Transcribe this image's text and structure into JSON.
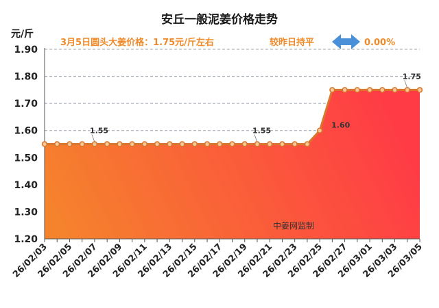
{
  "header": {
    "title": "安丘一般泥姜价格走势",
    "subtitle": "3月5日圆头大姜价格：1.75元/斤左右",
    "compare_text": "较昨日持平",
    "change_pct": "0.00%",
    "arrow_icon": "left-right-arrow-icon",
    "arrow_color": "#4a90d9"
  },
  "watermark": "中姜网监制",
  "colors": {
    "line": "#d9772e",
    "marker_fill": "#f6c89a",
    "fill_top": "#ff3b46",
    "fill_bottom": "#f5832c",
    "grid": "#9aa3ad"
  },
  "chart_data": {
    "type": "area",
    "title": "安丘一般泥姜价格走势",
    "ylabel": "元/斤",
    "ylim": [
      1.2,
      1.9
    ],
    "yticks": [
      "1.20",
      "1.30",
      "1.40",
      "1.50",
      "1.60",
      "1.70",
      "1.80",
      "1.90"
    ],
    "grid": true,
    "x": [
      "26/02/03",
      "26/02/04",
      "26/02/05",
      "26/02/06",
      "26/02/07",
      "26/02/08",
      "26/02/09",
      "26/02/10",
      "26/02/11",
      "26/02/12",
      "26/02/13",
      "26/02/14",
      "26/02/15",
      "26/02/16",
      "26/02/17",
      "26/02/18",
      "26/02/19",
      "26/02/20",
      "26/02/21",
      "26/02/22",
      "26/02/23",
      "26/02/24",
      "26/02/25",
      "26/02/26",
      "26/02/27",
      "26/02/28",
      "26/03/01",
      "26/03/02",
      "26/03/03",
      "26/03/04",
      "26/03/05"
    ],
    "xtick_labels": [
      "26/02/03",
      "26/02/05",
      "26/02/07",
      "26/02/09",
      "26/02/11",
      "26/02/13",
      "26/02/15",
      "26/02/17",
      "26/02/19",
      "26/02/21",
      "26/02/23",
      "26/02/25",
      "26/02/27",
      "26/03/01",
      "26/03/03",
      "26/03/05"
    ],
    "series": [
      {
        "values": [
          1.55,
          1.55,
          1.55,
          1.55,
          1.55,
          1.55,
          1.55,
          1.55,
          1.55,
          1.55,
          1.55,
          1.55,
          1.55,
          1.55,
          1.55,
          1.55,
          1.55,
          1.55,
          1.55,
          1.55,
          1.55,
          1.55,
          1.6,
          1.75,
          1.75,
          1.75,
          1.75,
          1.75,
          1.75,
          1.75,
          1.75
        ]
      }
    ],
    "annotations": [
      {
        "x": "26/02/07",
        "text": "1.55"
      },
      {
        "x": "26/02/20",
        "text": "1.55"
      },
      {
        "x": "26/02/25",
        "text": "1.60"
      },
      {
        "x": "26/03/04",
        "text": "1.75"
      }
    ]
  }
}
